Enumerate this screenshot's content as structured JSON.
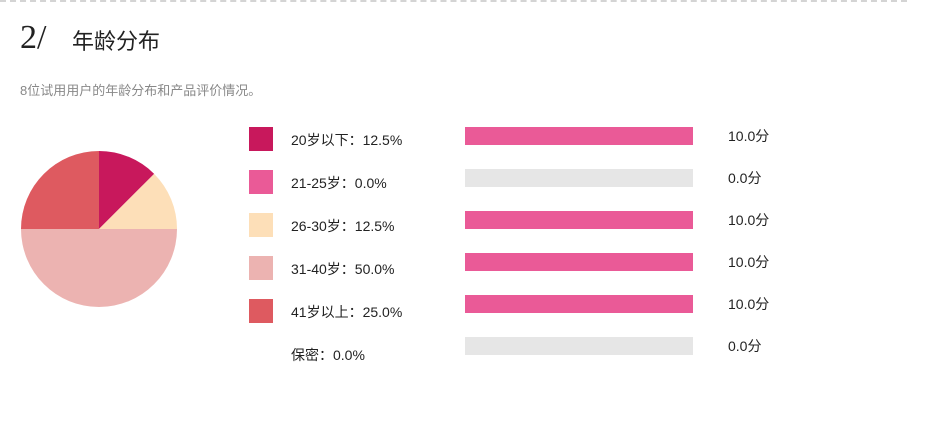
{
  "section": {
    "number": "2/",
    "title": "年龄分布",
    "description": "8位试用用户的年龄分布和产品评价情况。"
  },
  "legend": [
    {
      "label": "20岁以下：12.5%",
      "color": "#c8185c"
    },
    {
      "label": "21-25岁：0.0%",
      "color": "#ea5a97"
    },
    {
      "label": "26-30岁：12.5%",
      "color": "#fddfb8"
    },
    {
      "label": "31-40岁：50.0%",
      "color": "#ecb3b1"
    },
    {
      "label": "41岁以上：25.0%",
      "color": "#de5a60"
    },
    {
      "label": "保密：0.0%",
      "color": null
    }
  ],
  "scores": [
    {
      "label": "10.0分",
      "value": 10.0
    },
    {
      "label": "0.0分",
      "value": 0.0
    },
    {
      "label": "10.0分",
      "value": 10.0
    },
    {
      "label": "10.0分",
      "value": 10.0
    },
    {
      "label": "10.0分",
      "value": 10.0
    },
    {
      "label": "0.0分",
      "value": 0.0
    }
  ],
  "colors": {
    "bar_fill": "#ea5a97",
    "bar_track": "#e6e6e6"
  },
  "chart_data": [
    {
      "type": "pie",
      "title": "年龄分布",
      "categories": [
        "20岁以下",
        "21-25岁",
        "26-30岁",
        "31-40岁",
        "41岁以上",
        "保密"
      ],
      "values": [
        12.5,
        0.0,
        12.5,
        50.0,
        25.0,
        0.0
      ],
      "colors": [
        "#c8185c",
        "#ea5a97",
        "#fddfb8",
        "#ecb3b1",
        "#de5a60",
        null
      ],
      "unit": "%",
      "legend_position": "right"
    },
    {
      "type": "bar",
      "orientation": "horizontal",
      "title": "产品评价",
      "categories": [
        "20岁以下",
        "21-25岁",
        "26-30岁",
        "31-40岁",
        "41岁以上",
        "保密"
      ],
      "values": [
        10.0,
        0.0,
        10.0,
        10.0,
        10.0,
        0.0
      ],
      "value_labels": [
        "10.0分",
        "0.0分",
        "10.0分",
        "10.0分",
        "10.0分",
        "0.0分"
      ],
      "xlim": [
        0,
        10
      ],
      "grid": false
    }
  ]
}
